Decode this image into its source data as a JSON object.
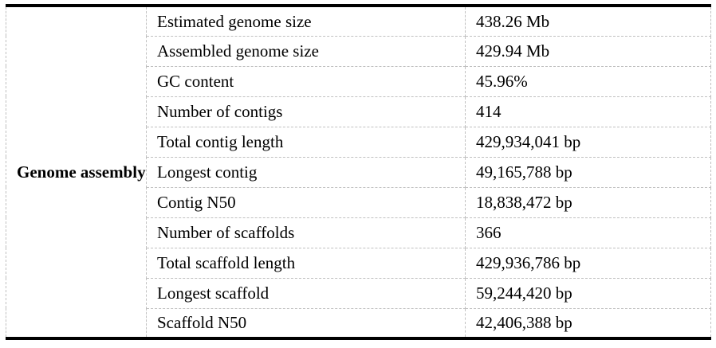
{
  "colors": {
    "background": "#ffffff",
    "text": "#000000",
    "heavy_border": "#000000",
    "gridline": "#c0c0c0"
  },
  "table": {
    "section_label": "Genome assembly",
    "rows": [
      {
        "metric": "Estimated genome size",
        "value": "438.26 Mb"
      },
      {
        "metric": "Assembled genome size",
        "value": "429.94 Mb"
      },
      {
        "metric": "GC content",
        "value": "45.96%"
      },
      {
        "metric": "Number of contigs",
        "value": "414"
      },
      {
        "metric": "Total contig length",
        "value": "429,934,041 bp"
      },
      {
        "metric": "Longest contig",
        "value": "49,165,788 bp"
      },
      {
        "metric": "Contig N50",
        "value": "18,838,472 bp"
      },
      {
        "metric": "Number of scaffolds",
        "value": "366"
      },
      {
        "metric": "Total scaffold length",
        "value": "429,936,786 bp"
      },
      {
        "metric": "Longest scaffold",
        "value": "59,244,420 bp"
      },
      {
        "metric": "Scaffold N50",
        "value": "42,406,388 bp"
      }
    ]
  }
}
